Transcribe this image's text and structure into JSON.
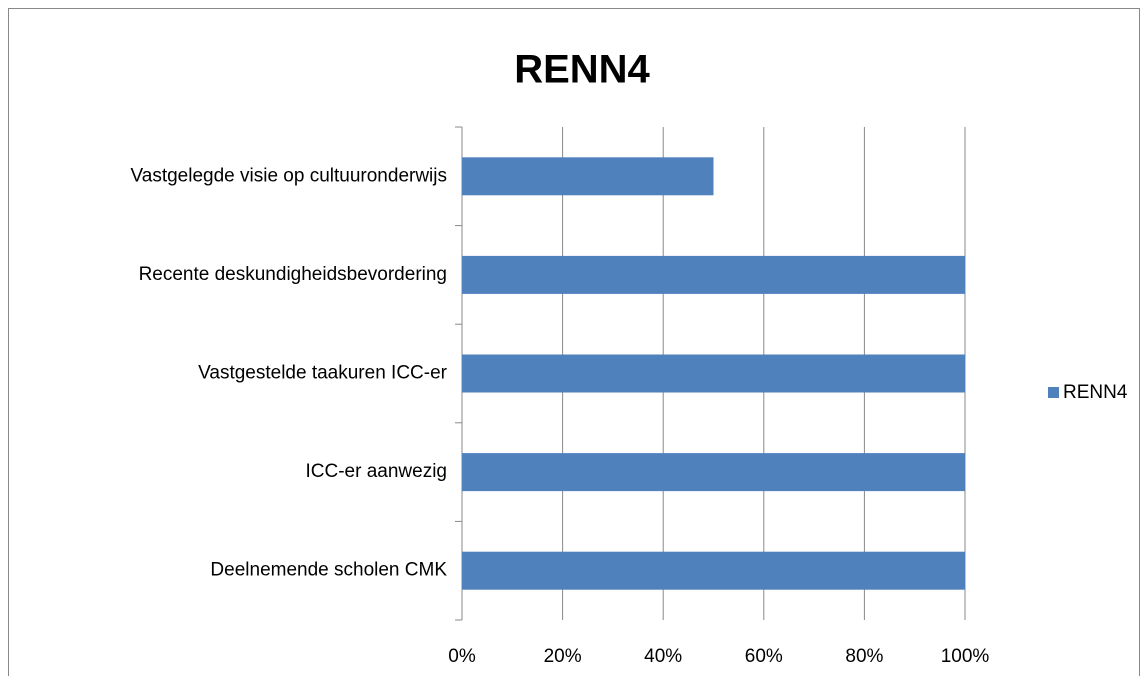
{
  "chart_data": {
    "type": "hbar",
    "title": "RENN4",
    "categories": [
      "Vastgelegde visie op cultuuronderwijs",
      "Recente deskundigheidsbevordering",
      "Vastgestelde taakuren ICC-er",
      "ICC-er aanwezig",
      "Deelnemende scholen CMK"
    ],
    "series": [
      {
        "name": "RENN4",
        "color": "#4f81bd",
        "values": [
          50,
          100,
          100,
          100,
          100
        ]
      }
    ],
    "xlim": [
      0,
      100
    ],
    "xticks": [
      {
        "value": 0,
        "label": "0%"
      },
      {
        "value": 20,
        "label": "20%"
      },
      {
        "value": 40,
        "label": "40%"
      },
      {
        "value": 60,
        "label": "60%"
      },
      {
        "value": 80,
        "label": "80%"
      },
      {
        "value": 100,
        "label": "100%"
      }
    ],
    "grid": true,
    "legend": "right"
  }
}
